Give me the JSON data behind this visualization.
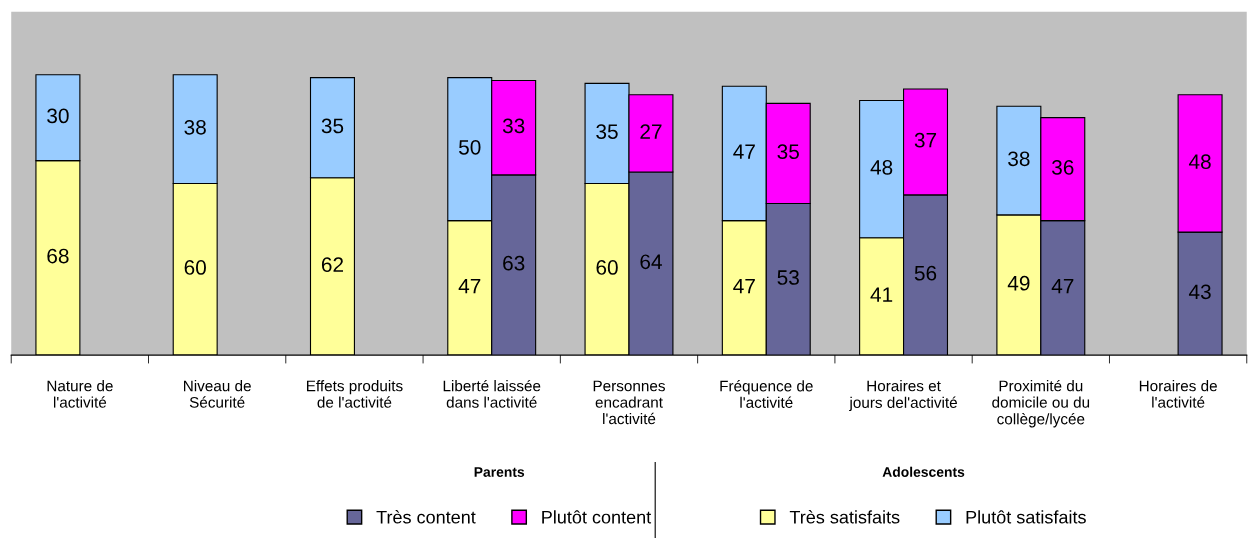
{
  "chart_data": [
    {
      "type": "bar",
      "stacked": true,
      "data_labels": true,
      "grid": false,
      "legend": "bottom right",
      "legend_title": "Adolescents",
      "ylim": [
        0,
        120
      ],
      "categories": [
        "Nature de\nl'activité",
        "Niveau de\nSécurité",
        "Effets produits\nde l'activité",
        "Liberté laissée\ndans l'activité",
        "Personnes\nencadrant\nl'activité",
        "Fréquence de\nl'activité",
        "Horaires et\njours del'activité",
        "Proximité du\ndomicile ou du\ncollège/lycée",
        "Horaires de\nl'activité"
      ],
      "series": [
        {
          "name": "Très satisfaits",
          "color": "#ffff99",
          "values": [
            68,
            60,
            62,
            47,
            60,
            47,
            41,
            49,
            null
          ]
        },
        {
          "name": "Plutôt satisfaits",
          "color": "#99ccff",
          "values": [
            30,
            38,
            35,
            50,
            35,
            47,
            48,
            38,
            null
          ]
        }
      ]
    },
    {
      "type": "bar",
      "stacked": true,
      "data_labels": true,
      "tick_labels": false,
      "grid": false,
      "legend": "bottom left",
      "legend_title": "Parents",
      "ylim": [
        0,
        120
      ],
      "categories": [
        null,
        null,
        null,
        null,
        null,
        null,
        null,
        null,
        null
      ],
      "series": [
        {
          "name": "Très content",
          "color": "#666699",
          "values": [
            null,
            null,
            null,
            63,
            64,
            53,
            56,
            47,
            43
          ]
        },
        {
          "name": "Plutôt content",
          "color": "#ff00ff",
          "values": [
            null,
            null,
            null,
            33,
            27,
            35,
            37,
            36,
            48
          ]
        }
      ]
    }
  ]
}
